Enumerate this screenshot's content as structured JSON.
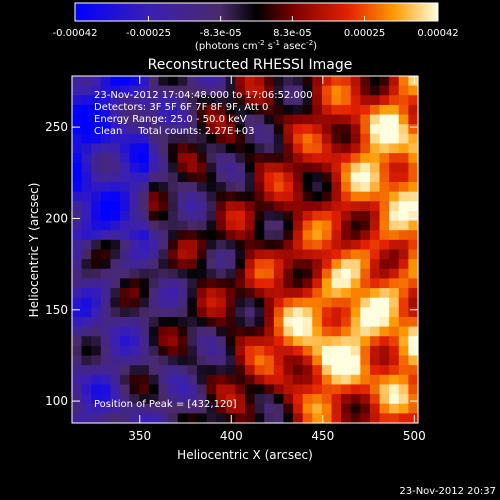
{
  "chart_data": {
    "type": "heatmap",
    "title": "Reconstructed RHESSI Image",
    "xlabel": "Heliocentric X (arcsec)",
    "ylabel": "Heliocentric Y (arcsec)",
    "xlim": [
      313,
      502
    ],
    "ylim": [
      88,
      278
    ],
    "x_ticks": [
      "350",
      "400",
      "450",
      "500"
    ],
    "x_tick_values": [
      350,
      400,
      450,
      500
    ],
    "y_ticks": [
      "100",
      "150",
      "200",
      "250"
    ],
    "y_tick_values": [
      100,
      150,
      200,
      250
    ],
    "colorbar": {
      "range": [
        -0.00042,
        0.00042
      ],
      "tick_labels": [
        "-0.00042",
        "-0.00025",
        "-8.3e-05",
        "8.3e-05",
        "0.00025",
        "0.00042"
      ],
      "unit_label": "(photons cm",
      "unit_sup1": "-2",
      "unit_mid": " s",
      "unit_sup2": "-1",
      "unit_mid2": " asec",
      "unit_sup3": "-2",
      "unit_end": ")"
    },
    "annotations": [
      "23-Nov-2012 17:04:48.000 to 17:06:52.000",
      "Detectors: 3F 5F 6F 7F 8F 9F, Att 0",
      "Energy Range: 25.0 - 50.0 keV",
      "Clean     Total counts: 2.27E+03"
    ],
    "peak_label": "Position of Peak = [432,120]",
    "peak": [
      432,
      120
    ],
    "legend": "none",
    "grid": false
  },
  "footer": {
    "timestamp": "23-Nov-2012 20:37"
  }
}
